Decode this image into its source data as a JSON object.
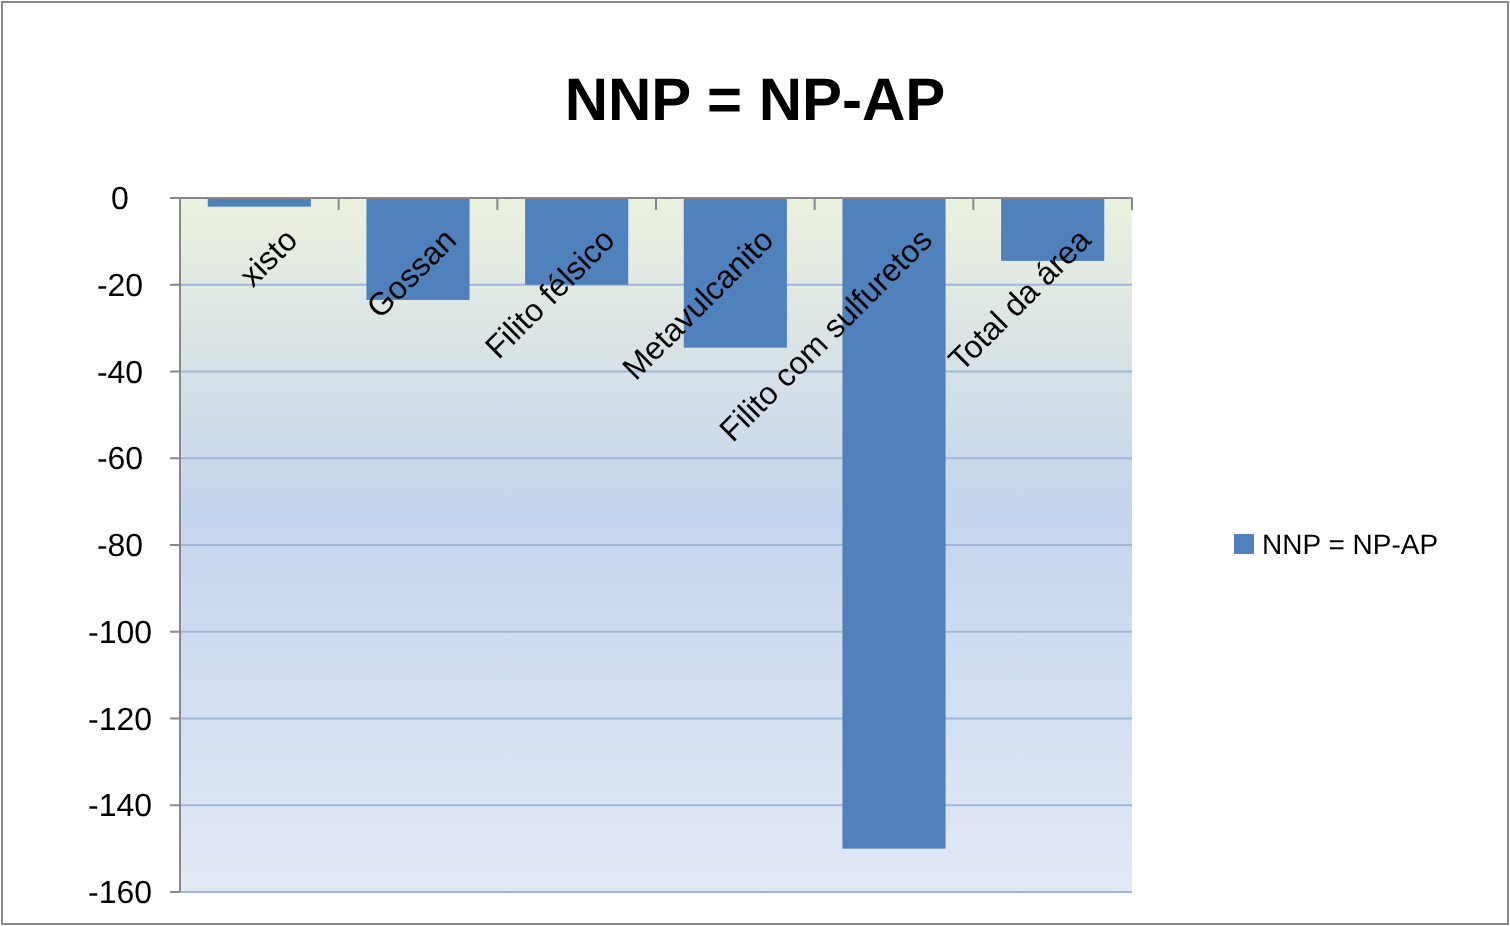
{
  "chart_data": {
    "type": "bar",
    "title": "NNP = NP-AP",
    "categories": [
      "xisto",
      "Gossan",
      "Filito félsico",
      "Metavulcanito",
      "Filito com sulfuretos",
      "Total da área"
    ],
    "series": [
      {
        "name": "NNP = NP-AP",
        "color": "#4f81bd",
        "values": [
          -2,
          -23.5,
          -20,
          -34.5,
          -150,
          -14.5
        ]
      }
    ],
    "ylim": [
      -160,
      0
    ],
    "yticks": [
      0,
      -20,
      -40,
      -60,
      -80,
      -100,
      -120,
      -140,
      -160
    ],
    "grid": "y",
    "legend": "right"
  }
}
